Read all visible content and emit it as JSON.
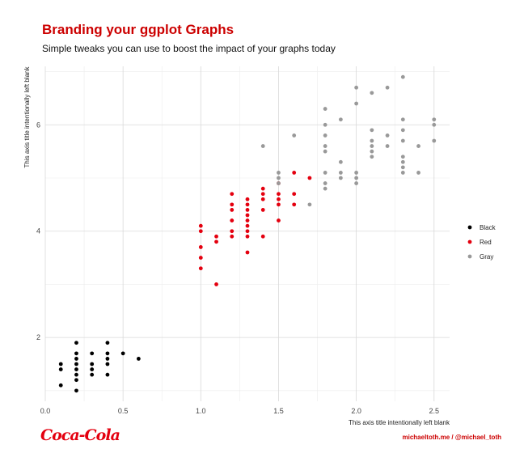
{
  "chart_data": {
    "type": "scatter",
    "title": "Branding your ggplot Graphs",
    "subtitle": "Simple tweaks you can use to boost the impact of your graphs today",
    "xlabel": "This axis title intentionally left blank",
    "ylabel": "This axis title intentionally left blank",
    "xlim": [
      0,
      2.6
    ],
    "ylim": [
      0.8,
      7.1
    ],
    "x_ticks": [
      "0.0",
      "0.5",
      "1.0",
      "1.5",
      "2.0",
      "2.5"
    ],
    "y_ticks": [
      "2",
      "4",
      "6"
    ],
    "grid": true,
    "legend_position": "right",
    "series": [
      {
        "name": "Black",
        "color": "#000000",
        "points": [
          [
            0.1,
            1.1
          ],
          [
            0.1,
            1.4
          ],
          [
            0.1,
            1.5
          ],
          [
            0.2,
            1.0
          ],
          [
            0.2,
            1.2
          ],
          [
            0.2,
            1.3
          ],
          [
            0.2,
            1.4
          ],
          [
            0.2,
            1.5
          ],
          [
            0.2,
            1.6
          ],
          [
            0.2,
            1.7
          ],
          [
            0.2,
            1.9
          ],
          [
            0.3,
            1.3
          ],
          [
            0.3,
            1.4
          ],
          [
            0.3,
            1.5
          ],
          [
            0.3,
            1.7
          ],
          [
            0.4,
            1.3
          ],
          [
            0.4,
            1.5
          ],
          [
            0.4,
            1.6
          ],
          [
            0.4,
            1.7
          ],
          [
            0.4,
            1.9
          ],
          [
            0.5,
            1.7
          ],
          [
            0.6,
            1.6
          ]
        ]
      },
      {
        "name": "Red",
        "color": "#e4000f",
        "points": [
          [
            1.0,
            3.3
          ],
          [
            1.0,
            3.5
          ],
          [
            1.0,
            3.7
          ],
          [
            1.0,
            4.0
          ],
          [
            1.0,
            4.1
          ],
          [
            1.1,
            3.0
          ],
          [
            1.1,
            3.8
          ],
          [
            1.1,
            3.9
          ],
          [
            1.2,
            3.9
          ],
          [
            1.2,
            4.0
          ],
          [
            1.2,
            4.2
          ],
          [
            1.2,
            4.4
          ],
          [
            1.2,
            4.5
          ],
          [
            1.2,
            4.7
          ],
          [
            1.3,
            3.6
          ],
          [
            1.3,
            3.9
          ],
          [
            1.3,
            4.0
          ],
          [
            1.3,
            4.1
          ],
          [
            1.3,
            4.2
          ],
          [
            1.3,
            4.3
          ],
          [
            1.3,
            4.4
          ],
          [
            1.3,
            4.5
          ],
          [
            1.3,
            4.6
          ],
          [
            1.4,
            3.9
          ],
          [
            1.4,
            4.4
          ],
          [
            1.4,
            4.6
          ],
          [
            1.4,
            4.7
          ],
          [
            1.4,
            4.8
          ],
          [
            1.5,
            4.2
          ],
          [
            1.5,
            4.5
          ],
          [
            1.5,
            4.6
          ],
          [
            1.5,
            4.7
          ],
          [
            1.5,
            4.9
          ],
          [
            1.6,
            4.5
          ],
          [
            1.6,
            4.7
          ],
          [
            1.6,
            5.1
          ],
          [
            1.7,
            5.0
          ]
        ]
      },
      {
        "name": "Gray",
        "color": "#999999",
        "points": [
          [
            1.4,
            5.6
          ],
          [
            1.5,
            4.9
          ],
          [
            1.5,
            5.0
          ],
          [
            1.5,
            5.1
          ],
          [
            1.6,
            5.8
          ],
          [
            1.7,
            4.5
          ],
          [
            1.8,
            4.8
          ],
          [
            1.8,
            4.9
          ],
          [
            1.8,
            5.1
          ],
          [
            1.8,
            5.5
          ],
          [
            1.8,
            5.6
          ],
          [
            1.8,
            5.8
          ],
          [
            1.8,
            6.0
          ],
          [
            1.8,
            6.3
          ],
          [
            1.9,
            5.0
          ],
          [
            1.9,
            5.1
          ],
          [
            1.9,
            5.3
          ],
          [
            1.9,
            6.1
          ],
          [
            2.0,
            4.9
          ],
          [
            2.0,
            5.0
          ],
          [
            2.0,
            5.1
          ],
          [
            2.0,
            6.4
          ],
          [
            2.0,
            6.7
          ],
          [
            2.1,
            5.4
          ],
          [
            2.1,
            5.5
          ],
          [
            2.1,
            5.6
          ],
          [
            2.1,
            5.7
          ],
          [
            2.1,
            5.9
          ],
          [
            2.1,
            6.6
          ],
          [
            2.2,
            5.6
          ],
          [
            2.2,
            5.8
          ],
          [
            2.2,
            6.7
          ],
          [
            2.3,
            5.1
          ],
          [
            2.3,
            5.2
          ],
          [
            2.3,
            5.3
          ],
          [
            2.3,
            5.4
          ],
          [
            2.3,
            5.7
          ],
          [
            2.3,
            5.9
          ],
          [
            2.3,
            6.1
          ],
          [
            2.3,
            6.9
          ],
          [
            2.4,
            5.6
          ],
          [
            2.4,
            5.1
          ],
          [
            2.5,
            5.7
          ],
          [
            2.5,
            6.0
          ],
          [
            2.5,
            6.1
          ]
        ]
      }
    ]
  },
  "branding": {
    "logo_text": "Coca-Cola",
    "caption": "michaeltoth.me / @michael_toth"
  }
}
